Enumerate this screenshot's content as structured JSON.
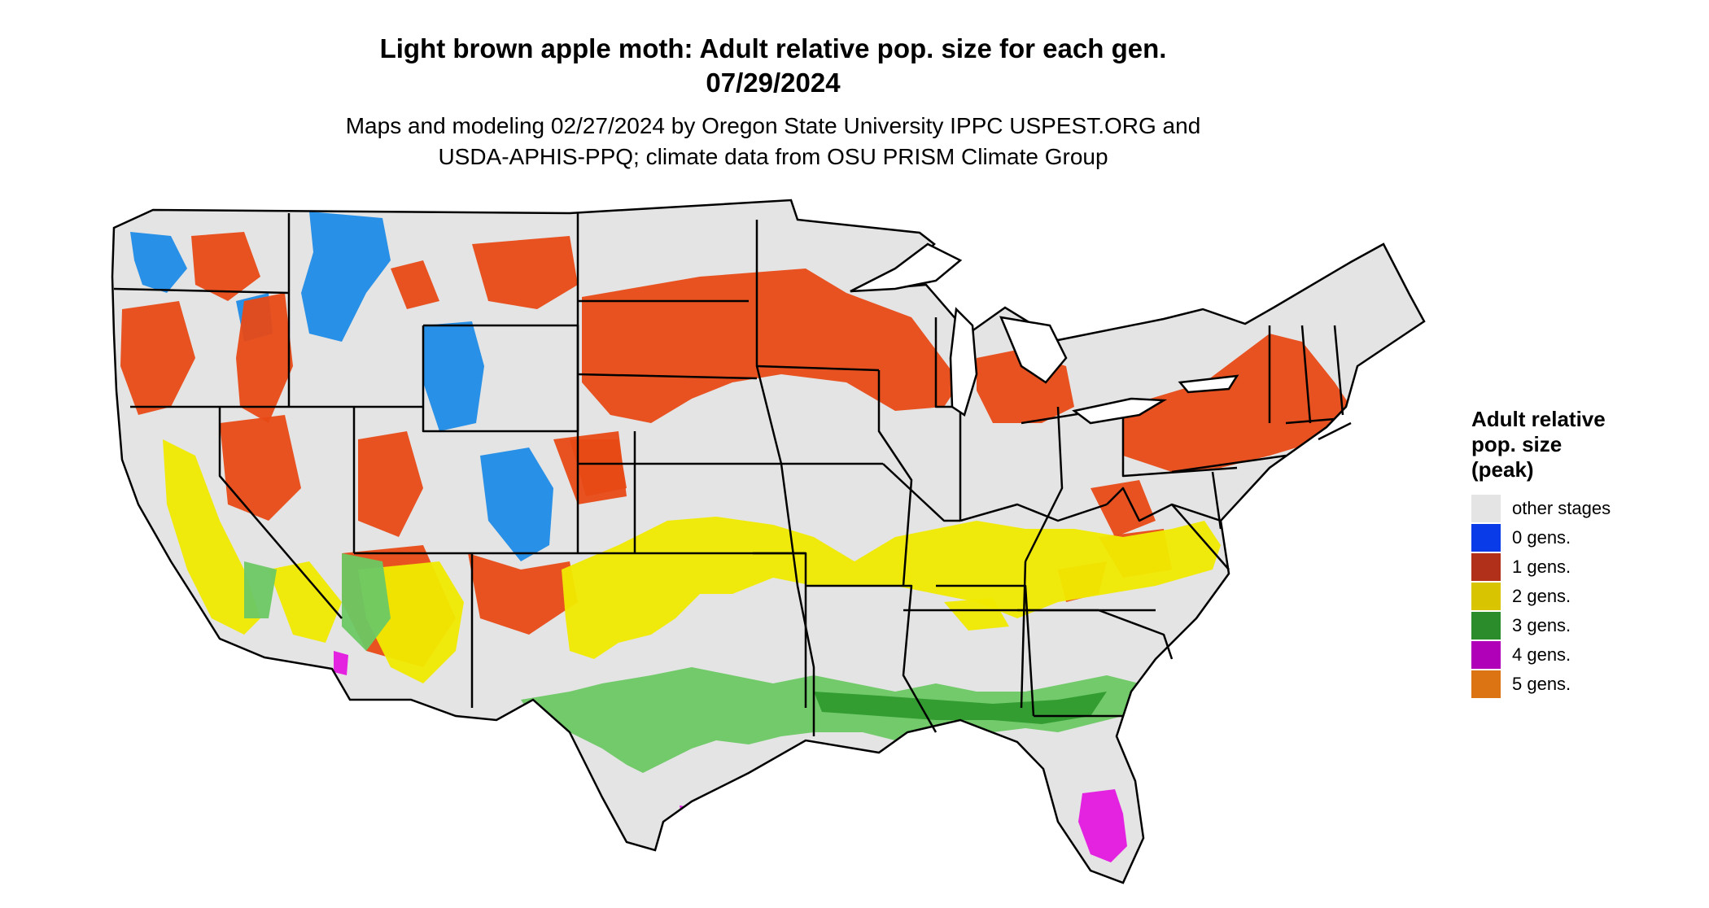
{
  "title": {
    "line1": "Light brown apple moth: Adult relative pop. size for each gen.",
    "line2": "07/29/2024"
  },
  "subtitle": {
    "line1": "Maps and modeling 02/27/2024 by Oregon State University IPPC USPEST.ORG and",
    "line2": "USDA-APHIS-PPQ; climate data from OSU PRISM Climate Group"
  },
  "legend": {
    "title_lines": [
      "Adult relative",
      "pop. size",
      "(peak)"
    ],
    "items": [
      {
        "label": "other stages",
        "color": "#e4e4e4"
      },
      {
        "label": "0 gens.",
        "color": "#0a3be8"
      },
      {
        "label": "1 gens.",
        "color": "#b0301a"
      },
      {
        "label": "2 gens.",
        "color": "#d8c400"
      },
      {
        "label": "3 gens.",
        "color": "#2a8c2a"
      },
      {
        "label": "4 gens.",
        "color": "#b000b8"
      },
      {
        "label": "5 gens.",
        "color": "#dc7414"
      }
    ]
  },
  "map_colors": {
    "background_land": "#e4e4e4",
    "gen0": "#1e8be6",
    "gen1": "#e84a16",
    "gen2": "#f0ea00",
    "gen3": "#6cc864",
    "gen3_dark": "#2f9a2f",
    "gen4": "#e418e0",
    "border": "#000000"
  }
}
